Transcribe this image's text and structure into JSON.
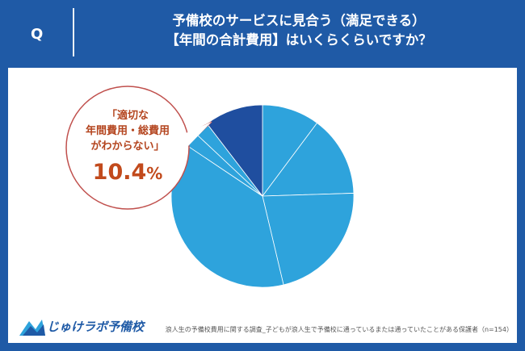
{
  "header": {
    "q_label": "Q",
    "title_line1": "予備校のサービスに見合う（満足できる）",
    "title_line2": "【年間の合計費用】はいくらくらいですか？"
  },
  "chart_data": {
    "type": "pie",
    "title": "",
    "start_angle_deg": 0,
    "direction": "clockwise",
    "slices": [
      {
        "label": "",
        "value": 10.2,
        "color": "#2ea3dc"
      },
      {
        "label": "",
        "value": 14.3,
        "color": "#2ea3dc"
      },
      {
        "label": "",
        "value": 21.8,
        "color": "#2ea3dc"
      },
      {
        "label": "",
        "value": 38.1,
        "color": "#2ea3dc"
      },
      {
        "label": "",
        "value": 2.6,
        "color": "#2ea3dc"
      },
      {
        "label": "",
        "value": 2.6,
        "color": "#2ea3dc"
      },
      {
        "label": "「適切な年間費用・総費用がわからない」",
        "value": 10.4,
        "color": "#1f4e9f"
      }
    ]
  },
  "callout": {
    "line1": "「適切な",
    "line2": "年間費用・総費用",
    "line3": "がわからない」",
    "value": "10.4",
    "unit": "%"
  },
  "colors": {
    "frame": "#1f5aa6",
    "highlight": "#1f4e9f",
    "slice": "#2ea3dc",
    "callout_text": "#c24a1c",
    "callout_border": "#c0504d"
  },
  "logo": {
    "text": "じゅけラボ予備校",
    "icon": "book-logo-icon"
  },
  "footnote": "浪人生の予備校費用に関する調査_子どもが浪人生で予備校に通っているまたは通っていたことがある保護者（n=154）"
}
